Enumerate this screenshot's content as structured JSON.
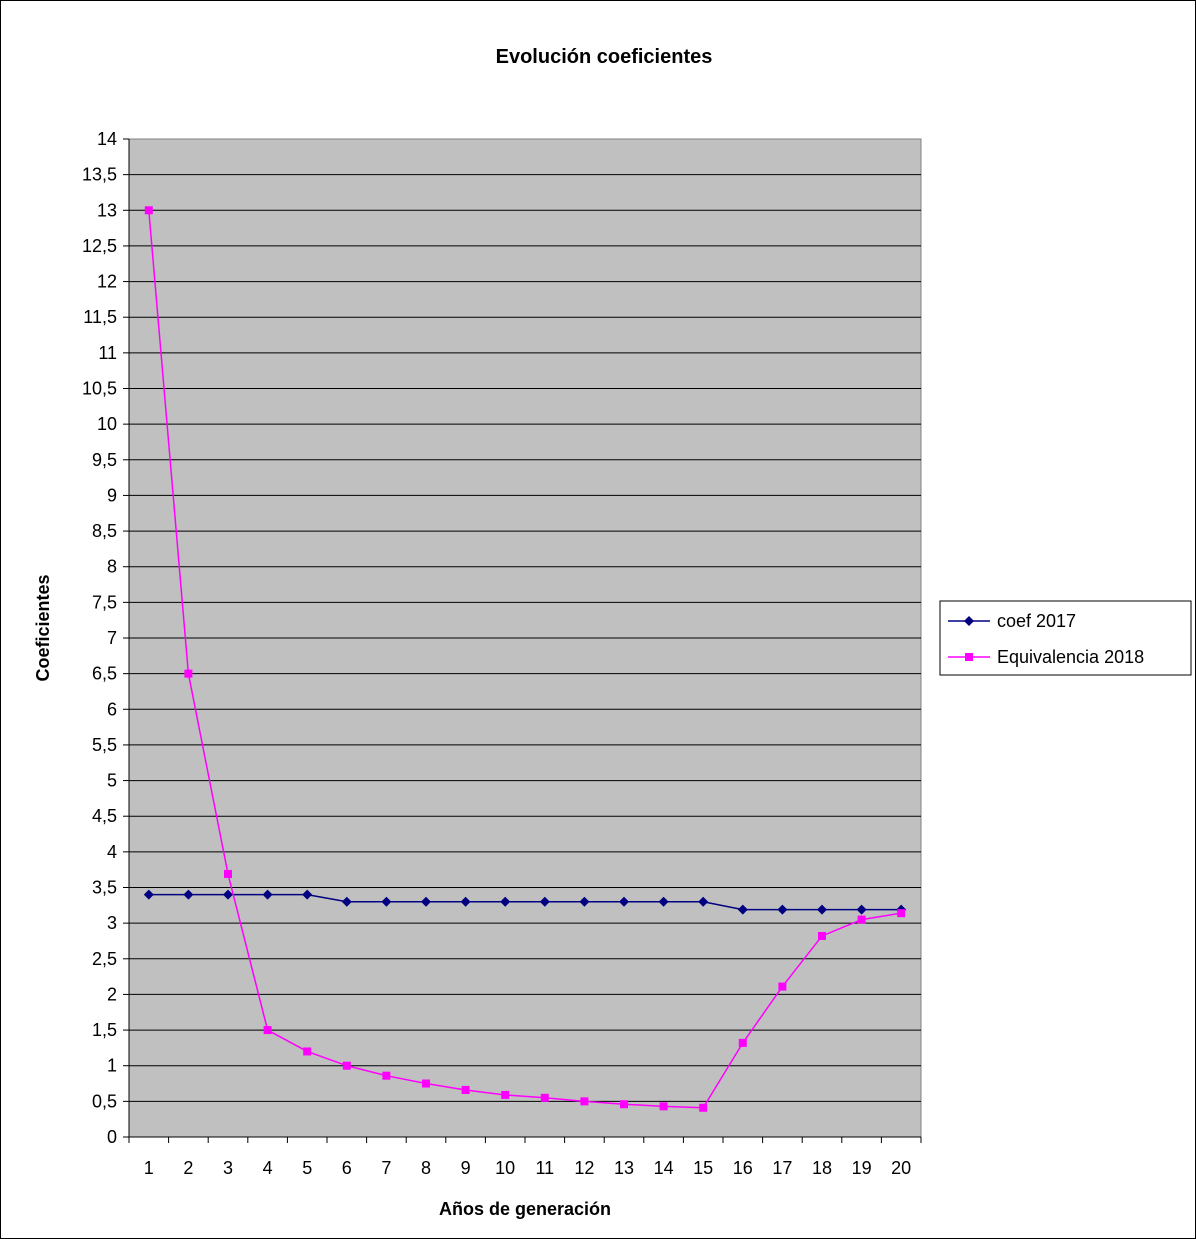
{
  "chart_data": {
    "type": "line",
    "title": "Evolución coeficientes",
    "xlabel": "Años de generación",
    "ylabel": "Coeficientes",
    "categories": [
      "1",
      "2",
      "3",
      "4",
      "5",
      "6",
      "7",
      "8",
      "9",
      "10",
      "11",
      "12",
      "13",
      "14",
      "15",
      "16",
      "17",
      "18",
      "19",
      "20"
    ],
    "ylim": [
      0,
      14
    ],
    "yticks": [
      "0",
      "0,5",
      "1",
      "1,5",
      "2",
      "2,5",
      "3",
      "3,5",
      "4",
      "4,5",
      "5",
      "5,5",
      "6",
      "6,5",
      "7",
      "7,5",
      "8",
      "8,5",
      "9",
      "9,5",
      "10",
      "10,5",
      "11",
      "11,5",
      "12",
      "12,5",
      "13",
      "13,5",
      "14"
    ],
    "grid": true,
    "legend_position": "right",
    "plot_background": "#c0c0c0",
    "series": [
      {
        "name": "coef 2017",
        "color": "#000080",
        "marker": "diamond",
        "values": [
          3.4,
          3.4,
          3.4,
          3.4,
          3.4,
          3.3,
          3.3,
          3.3,
          3.3,
          3.3,
          3.3,
          3.3,
          3.3,
          3.3,
          3.3,
          3.19,
          3.19,
          3.19,
          3.19,
          3.19
        ]
      },
      {
        "name": "Equivalencia 2018",
        "color": "#ff00ff",
        "marker": "square",
        "values": [
          13,
          6.5,
          3.69,
          1.5,
          1.2,
          1.0,
          0.86,
          0.75,
          0.66,
          0.59,
          0.55,
          0.5,
          0.46,
          0.43,
          0.41,
          1.32,
          2.11,
          2.82,
          3.05,
          3.14
        ]
      }
    ]
  }
}
